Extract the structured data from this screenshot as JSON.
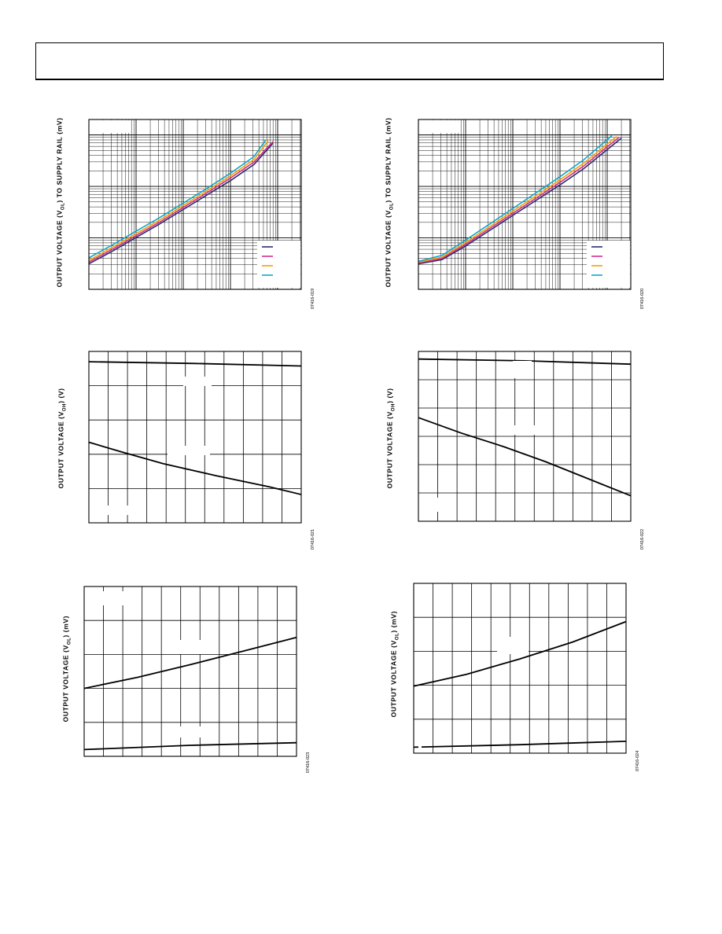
{
  "charts": [
    {
      "id": "c1",
      "ylabel": {
        "pre": "OUTPUT VOLTAGE (V",
        "sub": "OL",
        "post": ") TO SUPPLY RAIL (mV)"
      },
      "fig_id": "07416-019",
      "chart_data": {
        "type": "line",
        "x_scale": "log",
        "y_scale": "log",
        "x_decades": 4.5,
        "y_decades": 3.3,
        "grid": true,
        "legend_colors": [
          "#2b2d6e",
          "#d2318a",
          "#f2a20c",
          "#10a6c9"
        ],
        "series": [
          {
            "color": "#2b2d6e",
            "points": [
              [
                0.0,
                0.15
              ],
              [
                0.5,
                0.225
              ],
              [
                1.0,
                0.305
              ],
              [
                1.5,
                0.385
              ],
              [
                2.0,
                0.47
              ],
              [
                2.5,
                0.555
              ],
              [
                3.0,
                0.64
              ],
              [
                3.5,
                0.735
              ],
              [
                3.9,
                0.86
              ]
            ]
          },
          {
            "color": "#d2318a",
            "points": [
              [
                0.0,
                0.16
              ],
              [
                0.5,
                0.236
              ],
              [
                1.0,
                0.316
              ],
              [
                1.5,
                0.396
              ],
              [
                2.0,
                0.482
              ],
              [
                2.5,
                0.568
              ],
              [
                3.0,
                0.655
              ],
              [
                3.5,
                0.75
              ],
              [
                3.9,
                0.87
              ]
            ]
          },
          {
            "color": "#f2a20c",
            "points": [
              [
                0.0,
                0.17
              ],
              [
                0.5,
                0.248
              ],
              [
                1.0,
                0.328
              ],
              [
                1.5,
                0.408
              ],
              [
                2.0,
                0.494
              ],
              [
                2.5,
                0.58
              ],
              [
                3.0,
                0.668
              ],
              [
                3.5,
                0.765
              ],
              [
                3.8,
                0.875
              ]
            ]
          },
          {
            "color": "#10a6c9",
            "points": [
              [
                0.0,
                0.185
              ],
              [
                0.5,
                0.262
              ],
              [
                1.0,
                0.342
              ],
              [
                1.5,
                0.422
              ],
              [
                2.0,
                0.508
              ],
              [
                2.5,
                0.594
              ],
              [
                3.0,
                0.684
              ],
              [
                3.5,
                0.782
              ],
              [
                3.75,
                0.88
              ]
            ]
          }
        ]
      }
    },
    {
      "id": "c2",
      "ylabel": {
        "pre": "OUTPUT VOLTAGE (V",
        "sub": "OL",
        "post": ") TO SUPPLY RAIL (mV)"
      },
      "fig_id": "07416-020",
      "chart_data": {
        "type": "line",
        "x_scale": "log",
        "y_scale": "log",
        "x_decades": 4.5,
        "y_decades": 3.3,
        "grid": true,
        "legend_colors": [
          "#2b2d6e",
          "#d2318a",
          "#f2a20c",
          "#10a6c9"
        ],
        "series": [
          {
            "color": "#2b2d6e",
            "points": [
              [
                0.0,
                0.15
              ],
              [
                0.5,
                0.175
              ],
              [
                1.0,
                0.255
              ],
              [
                1.5,
                0.345
              ],
              [
                2.0,
                0.435
              ],
              [
                2.5,
                0.525
              ],
              [
                3.0,
                0.615
              ],
              [
                3.5,
                0.71
              ],
              [
                4.3,
                0.89
              ]
            ]
          },
          {
            "color": "#d2318a",
            "points": [
              [
                0.0,
                0.155
              ],
              [
                0.5,
                0.182
              ],
              [
                1.0,
                0.265
              ],
              [
                1.5,
                0.356
              ],
              [
                2.0,
                0.447
              ],
              [
                2.5,
                0.538
              ],
              [
                3.0,
                0.63
              ],
              [
                3.5,
                0.726
              ],
              [
                4.25,
                0.895
              ]
            ]
          },
          {
            "color": "#f2a20c",
            "points": [
              [
                0.0,
                0.16
              ],
              [
                0.5,
                0.19
              ],
              [
                1.0,
                0.276
              ],
              [
                1.5,
                0.368
              ],
              [
                2.0,
                0.46
              ],
              [
                2.5,
                0.552
              ],
              [
                3.0,
                0.645
              ],
              [
                3.5,
                0.742
              ],
              [
                4.2,
                0.9
              ]
            ]
          },
          {
            "color": "#10a6c9",
            "points": [
              [
                0.0,
                0.165
              ],
              [
                0.5,
                0.2
              ],
              [
                1.0,
                0.29
              ],
              [
                1.5,
                0.383
              ],
              [
                2.0,
                0.476
              ],
              [
                2.5,
                0.569
              ],
              [
                3.0,
                0.663
              ],
              [
                3.5,
                0.762
              ],
              [
                4.1,
                0.905
              ]
            ]
          }
        ]
      }
    },
    {
      "id": "c3",
      "ylabel": {
        "pre": "OUTPUT VOLTAGE (V",
        "sub": "OH",
        "post": ") (V)"
      },
      "fig_id": "07416-021",
      "chart_data": {
        "type": "line",
        "x_divisions": 11,
        "y_divisions": 5,
        "grid": true,
        "series": [
          {
            "color": "#000000",
            "points": [
              [
                0.0,
                0.94
              ],
              [
                0.5,
                0.93
              ],
              [
                1.0,
                0.915
              ]
            ]
          },
          {
            "color": "#000000",
            "points": [
              [
                0.0,
                0.47
              ],
              [
                0.15,
                0.415
              ],
              [
                0.35,
                0.345
              ],
              [
                0.6,
                0.275
              ],
              [
                0.85,
                0.21
              ],
              [
                1.0,
                0.165
              ]
            ]
          }
        ]
      }
    },
    {
      "id": "c4",
      "ylabel": {
        "pre": "OUTPUT VOLTAGE (V",
        "sub": "OH",
        "post": ") (V)"
      },
      "fig_id": "07416-022",
      "chart_data": {
        "type": "line",
        "x_divisions": 11,
        "y_divisions": 6,
        "grid": true,
        "series": [
          {
            "color": "#000000",
            "points": [
              [
                0.0,
                0.955
              ],
              [
                0.5,
                0.945
              ],
              [
                1.0,
                0.925
              ]
            ]
          },
          {
            "color": "#000000",
            "points": [
              [
                0.0,
                0.61
              ],
              [
                0.2,
                0.52
              ],
              [
                0.4,
                0.44
              ],
              [
                0.6,
                0.35
              ],
              [
                0.8,
                0.25
              ],
              [
                1.0,
                0.15
              ]
            ]
          }
        ]
      }
    },
    {
      "id": "c5",
      "ylabel": {
        "pre": "OUTPUT VOLTAGE (V",
        "sub": "OL",
        "post": ") (mV)"
      },
      "fig_id": "07416-023",
      "chart_data": {
        "type": "line",
        "x_divisions": 11,
        "y_divisions": 5,
        "grid": true,
        "series": [
          {
            "color": "#000000",
            "points": [
              [
                0.0,
                0.04
              ],
              [
                0.5,
                0.065
              ],
              [
                1.0,
                0.08
              ]
            ]
          },
          {
            "color": "#000000",
            "points": [
              [
                0.0,
                0.4
              ],
              [
                0.25,
                0.465
              ],
              [
                0.5,
                0.54
              ],
              [
                0.75,
                0.62
              ],
              [
                1.0,
                0.7
              ]
            ]
          }
        ]
      }
    },
    {
      "id": "c6",
      "ylabel": {
        "pre": "OUTPUT VOLTAGE (V",
        "sub": "OL",
        "post": ") (mV)"
      },
      "fig_id": "07416-024",
      "chart_data": {
        "type": "line",
        "x_divisions": 11,
        "y_divisions": 5,
        "grid": true,
        "series": [
          {
            "color": "#000000",
            "points": [
              [
                0.0,
                0.035
              ],
              [
                0.5,
                0.05
              ],
              [
                1.0,
                0.07
              ]
            ]
          },
          {
            "color": "#000000",
            "points": [
              [
                0.0,
                0.395
              ],
              [
                0.25,
                0.465
              ],
              [
                0.5,
                0.555
              ],
              [
                0.75,
                0.655
              ],
              [
                1.0,
                0.775
              ]
            ]
          }
        ]
      }
    }
  ]
}
